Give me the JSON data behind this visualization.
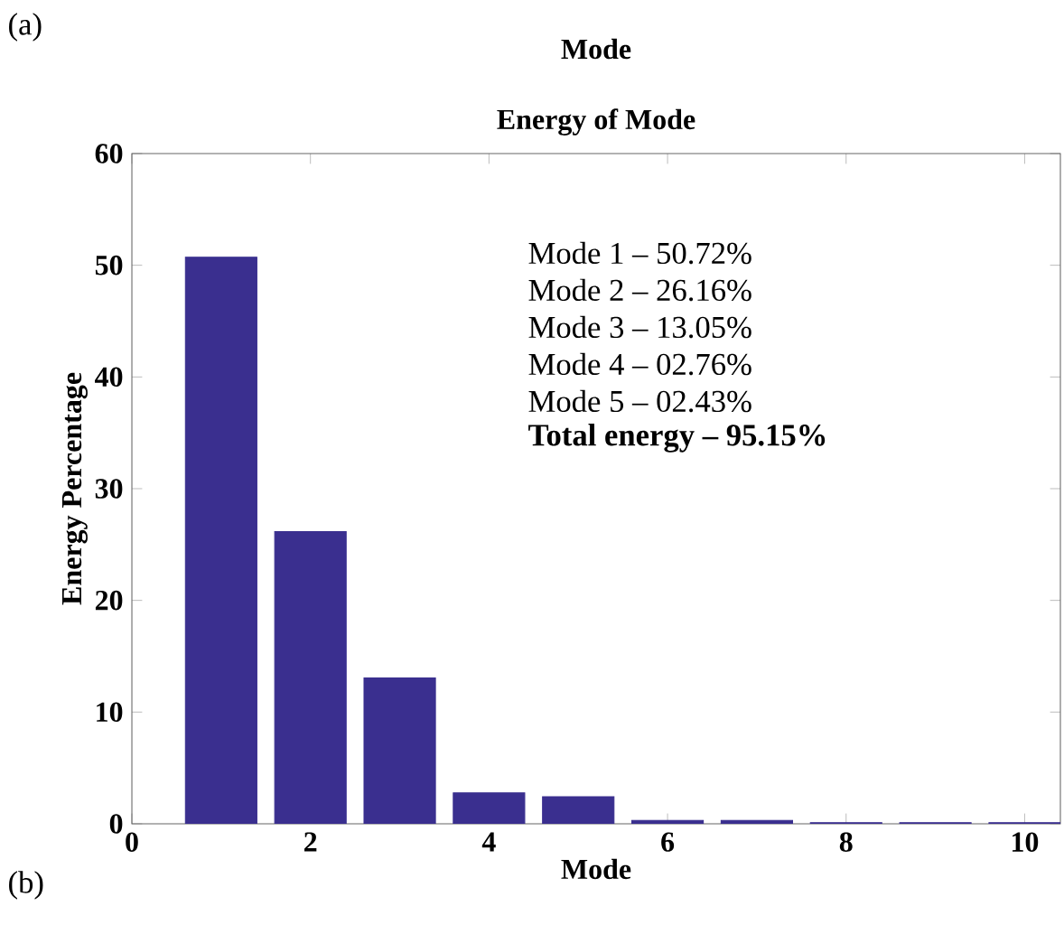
{
  "chart_data": {
    "type": "bar",
    "title": "Energy of Mode",
    "xlabel": "Mode",
    "ylabel": "Energy Percentage",
    "x": [
      1,
      2,
      3,
      4,
      5,
      6,
      7,
      8,
      9,
      10
    ],
    "values": [
      50.72,
      26.16,
      13.05,
      2.76,
      2.43,
      0.3,
      0.3,
      0.1,
      0.1,
      0.1
    ],
    "color": "#3a2f8f",
    "xlim": [
      0,
      10.4
    ],
    "xticks": [
      0,
      2,
      4,
      6,
      8,
      10
    ],
    "ylim": [
      0,
      60
    ],
    "yticks": [
      0,
      10,
      20,
      30,
      40,
      50,
      60
    ],
    "annotations": [
      "(a)",
      "Mode",
      "(b)",
      "Mode 1 – 50.72%",
      "Mode 2 – 26.16%",
      "Mode 3 – 13.05%",
      "Mode 4 – 02.76%",
      "Mode 5 – 02.43%",
      "Total energy – 95.15%"
    ]
  }
}
